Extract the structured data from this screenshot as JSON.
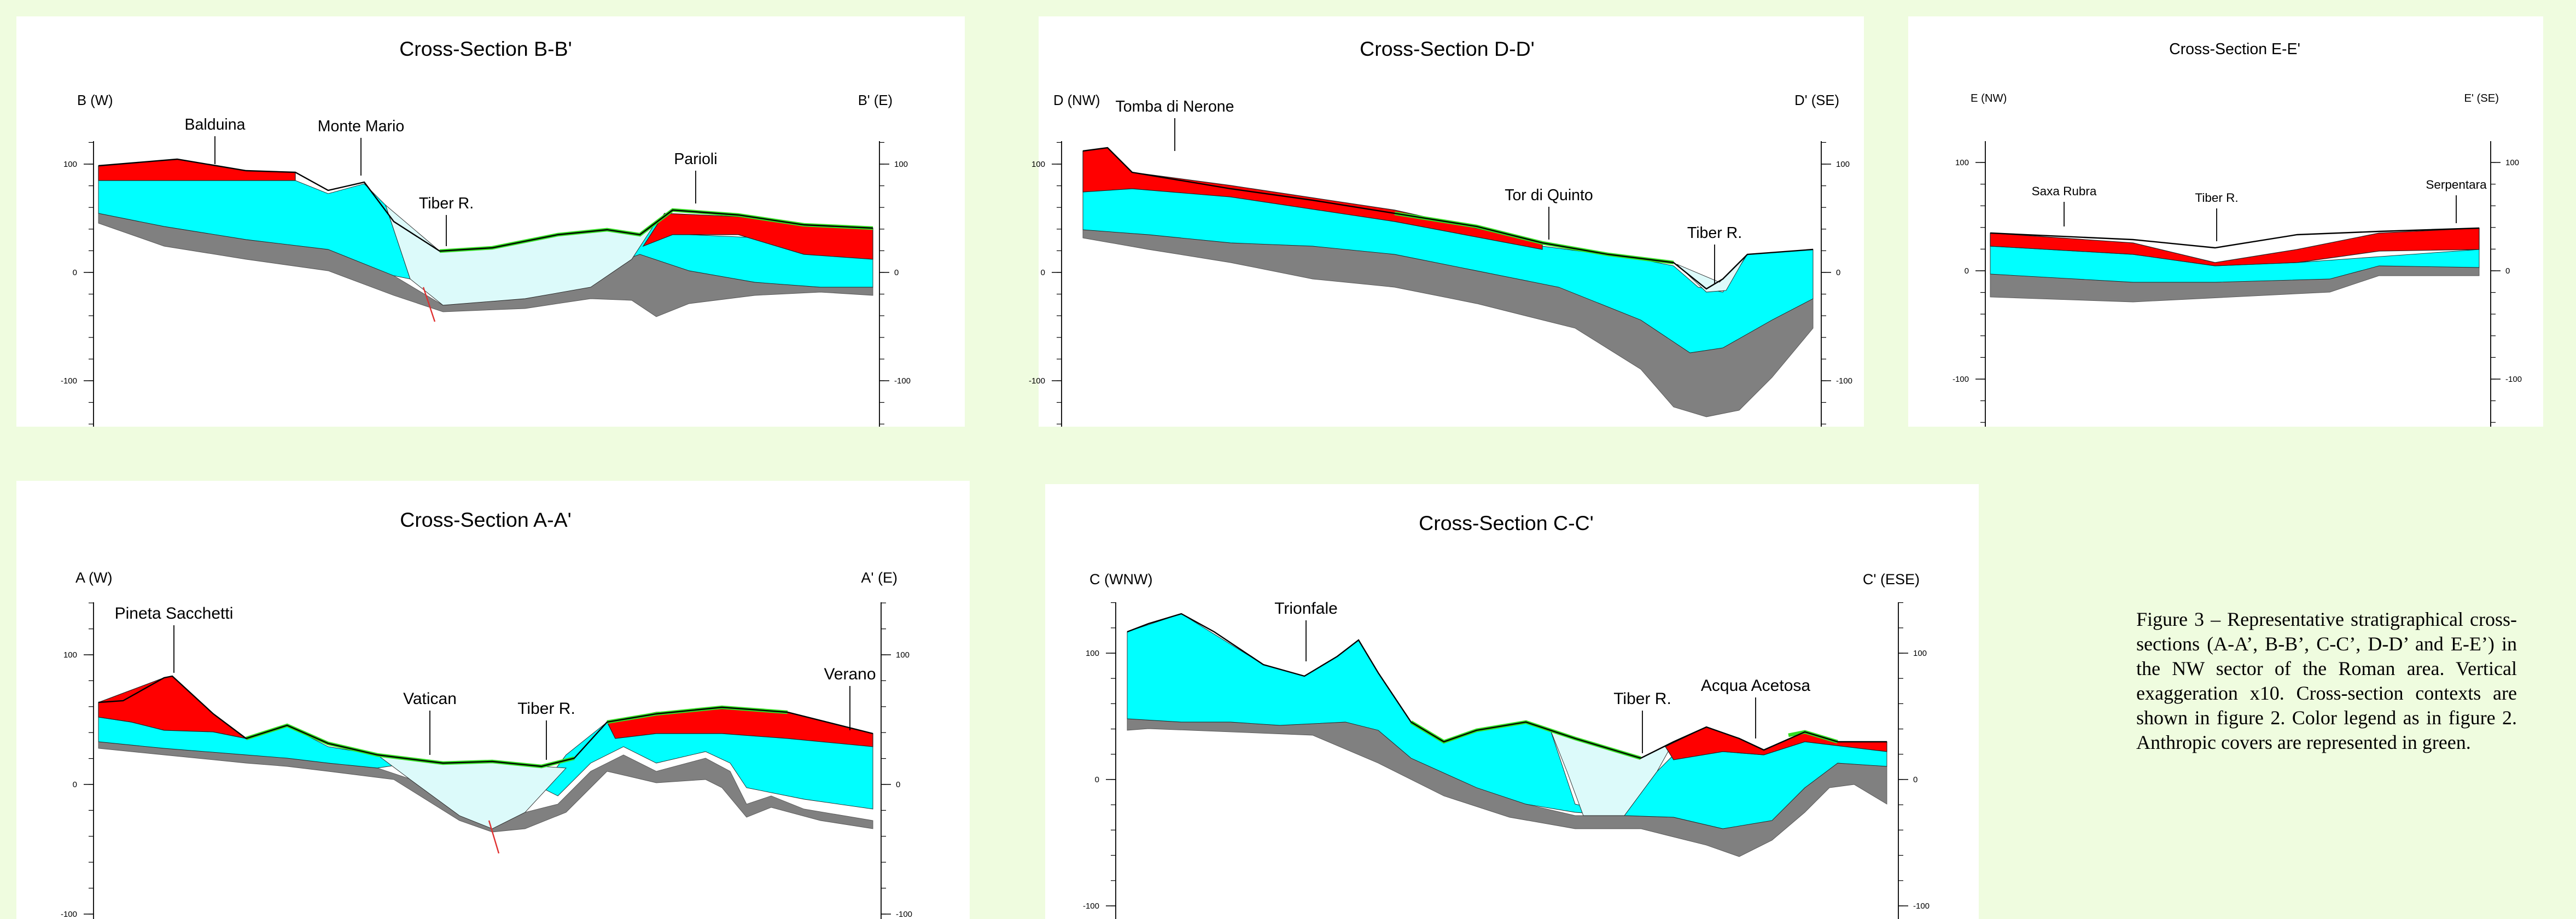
{
  "panels": [
    {
      "title": "Cross-Section B-B'",
      "left_label": "B (W)",
      "right_label": "B' (E)",
      "ticks": [
        "100",
        "0",
        "-100"
      ],
      "places": [
        "Balduina",
        "Monte Mario",
        "Tiber R.",
        "Parioli"
      ]
    },
    {
      "title": "Cross-Section D-D'",
      "left_label": "D (NW)",
      "right_label": "D' (SE)",
      "ticks": [
        "100",
        "0",
        "-100"
      ],
      "places": [
        "Tomba di Nerone",
        "Tor di Quinto",
        "Tiber R."
      ]
    },
    {
      "title": "Cross-Section E-E'",
      "left_label": "E (NW)",
      "right_label": "E' (SE)",
      "ticks": [
        "100",
        "0",
        "-100"
      ],
      "places": [
        "Saxa Rubra",
        "Tiber R.",
        "Serpentara"
      ]
    },
    {
      "title": "Cross-Section A-A'",
      "left_label": "A (W)",
      "right_label": "A' (E)",
      "ticks": [
        "100",
        "0",
        "-100"
      ],
      "places": [
        "Pineta Sacchetti",
        "Vatican",
        "Tiber R.",
        "Verano"
      ]
    },
    {
      "title": "Cross-Section C-C'",
      "left_label": "C (WNW)",
      "right_label": "C' (ESE)",
      "ticks": [
        "100",
        "0",
        "-100"
      ],
      "places": [
        "Trionfale",
        "Tiber R.",
        "Acqua Acetosa"
      ]
    }
  ],
  "caption": "Figure 3 – Representative stratigraphical cross-sections (A-A’, B-B’, C-C’, D-D’ and E-E’) in the NW sector of the Roman area. Vertical exaggeration x10. Cross-section contexts are shown in figure 2. Color legend as in figure 2. Anthropic covers are represented in green."
}
